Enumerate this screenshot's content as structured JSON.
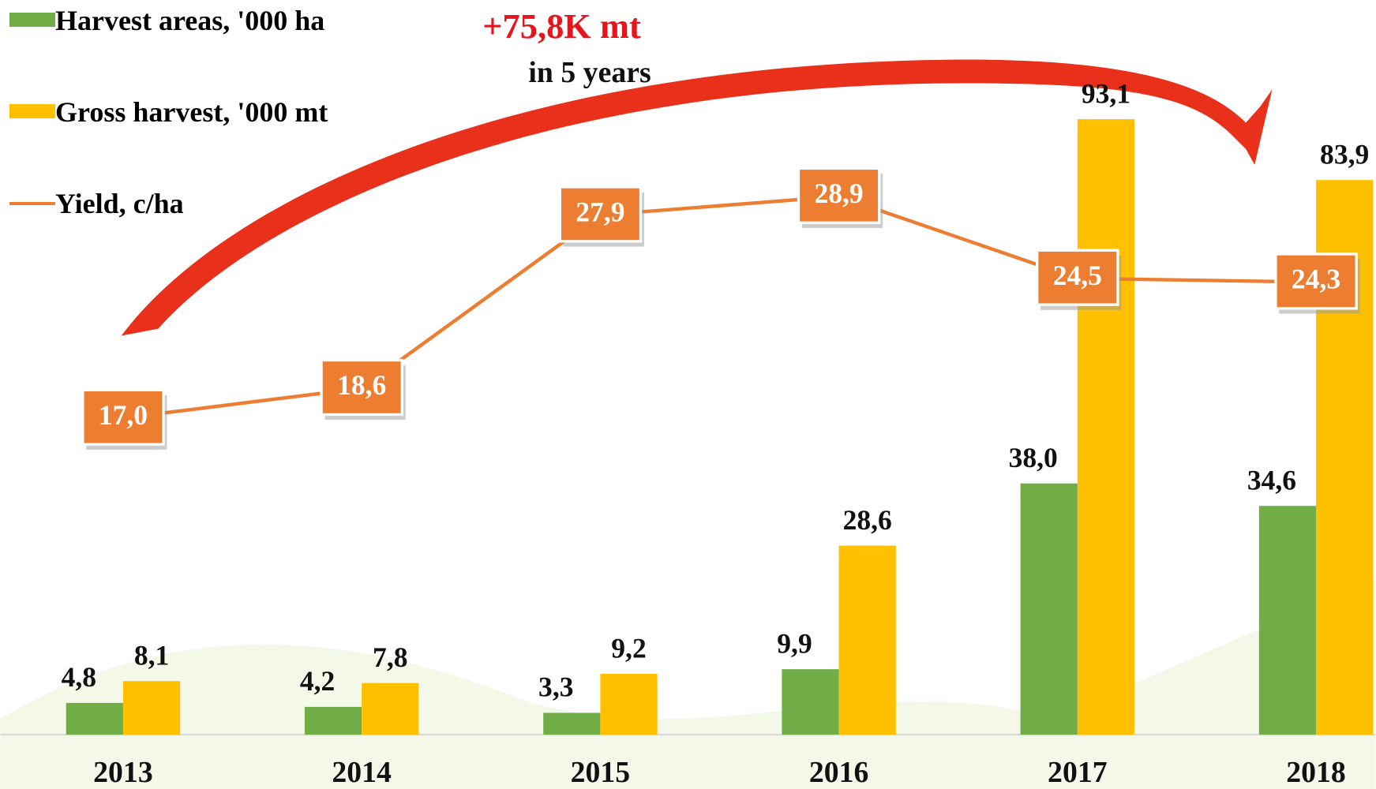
{
  "chart_data": {
    "type": "bar",
    "annotations": [
      "+75,8K mt",
      "in 5 years"
    ],
    "categories": [
      "2013",
      "2014",
      "2015",
      "2016",
      "2017",
      "2018"
    ],
    "series": [
      {
        "name": "Harvest areas, '000 ha",
        "color": "#70ad47",
        "values": [
          4.8,
          4.2,
          3.3,
          9.9,
          38.0,
          34.6
        ],
        "value_labels": [
          "4,8",
          "4,2",
          "3,3",
          "9,9",
          "38,0",
          "34,6"
        ]
      },
      {
        "name": "Gross harvest, '000 mt",
        "color": "#ffc000",
        "values": [
          8.1,
          7.8,
          9.2,
          28.6,
          93.1,
          83.9
        ],
        "value_labels": [
          "8,1",
          "7,8",
          "9,2",
          "28,6",
          "93,1",
          "83,9"
        ]
      },
      {
        "name": "Yield, c/ha",
        "type": "line",
        "axis": "y2",
        "color": "#ed7d31",
        "values": [
          17.0,
          18.6,
          27.9,
          28.9,
          24.5,
          24.3
        ],
        "value_labels": [
          "17,0",
          "18,6",
          "27,9",
          "28,9",
          "24,5",
          "24,3"
        ]
      }
    ],
    "ylim": [
      0,
      111
    ],
    "y2lim": [
      0,
      39.4
    ]
  }
}
